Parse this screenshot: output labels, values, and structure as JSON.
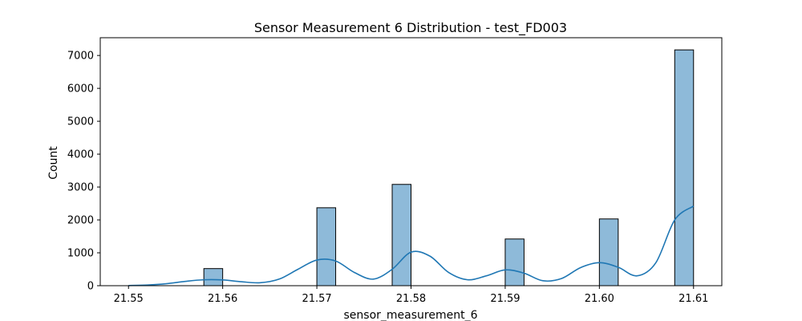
{
  "chart_data": {
    "type": "bar",
    "title": "Sensor Measurement 6 Distribution - test_FD003",
    "xlabel": "sensor_measurement_6",
    "ylabel": "Count",
    "xlim": [
      21.547,
      21.613
    ],
    "ylim": [
      0,
      7540
    ],
    "xticks": [
      21.55,
      21.56,
      21.57,
      21.58,
      21.59,
      21.6,
      21.61
    ],
    "xtick_labels": [
      "21.55",
      "21.56",
      "21.57",
      "21.58",
      "21.59",
      "21.60",
      "21.61"
    ],
    "yticks": [
      0,
      1000,
      2000,
      3000,
      4000,
      5000,
      6000,
      7000
    ],
    "ytick_labels": [
      "0",
      "1000",
      "2000",
      "3000",
      "4000",
      "5000",
      "6000",
      "7000"
    ],
    "grid": false,
    "bar_color": "#8ebad9",
    "bar_edge_color": "#000000",
    "kde_color": "#1f77b4",
    "bins": [
      {
        "x0": 21.558,
        "x1": 21.56,
        "count": 520
      },
      {
        "x0": 21.57,
        "x1": 21.572,
        "count": 2370
      },
      {
        "x0": 21.578,
        "x1": 21.58,
        "count": 3080
      },
      {
        "x0": 21.59,
        "x1": 21.592,
        "count": 1420
      },
      {
        "x0": 21.6,
        "x1": 21.602,
        "count": 2030
      },
      {
        "x0": 21.608,
        "x1": 21.61,
        "count": 7170
      }
    ],
    "kde": {
      "x": [
        21.55,
        21.552,
        21.554,
        21.556,
        21.558,
        21.56,
        21.562,
        21.564,
        21.566,
        21.568,
        21.57,
        21.572,
        21.574,
        21.576,
        21.578,
        21.58,
        21.582,
        21.584,
        21.586,
        21.588,
        21.59,
        21.592,
        21.594,
        21.596,
        21.598,
        21.6,
        21.602,
        21.604,
        21.606,
        21.608,
        21.61
      ],
      "y": [
        5,
        20,
        60,
        130,
        180,
        175,
        120,
        90,
        200,
        500,
        780,
        750,
        400,
        200,
        500,
        1020,
        900,
        400,
        180,
        300,
        480,
        380,
        150,
        220,
        550,
        700,
        560,
        300,
        700,
        2000,
        2420
      ]
    }
  }
}
